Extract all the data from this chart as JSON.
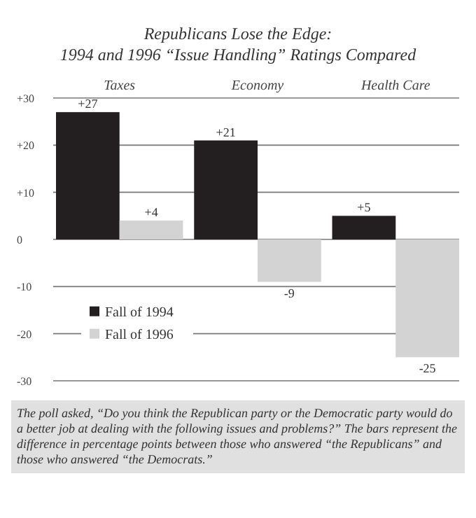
{
  "chart_data": {
    "type": "bar",
    "title": "Republicans Lose the Edge:",
    "subtitle": "1994 and 1996 “Issue Handling” Ratings Compared",
    "categories": [
      "Taxes",
      "Economy",
      "Health Care"
    ],
    "series": [
      {
        "name": "Fall of 1994",
        "color": "#231f20",
        "values": [
          27,
          21,
          5
        ],
        "value_labels": [
          "+27",
          "+21",
          "+5"
        ]
      },
      {
        "name": "Fall of 1996",
        "color": "#d3d3d3",
        "values": [
          4,
          -9,
          -25
        ],
        "value_labels": [
          "+4",
          "-9",
          "-25"
        ]
      }
    ],
    "ylim": [
      -30,
      30
    ],
    "yticks": [
      {
        "value": 30,
        "label": "+30"
      },
      {
        "value": 20,
        "label": "+20"
      },
      {
        "value": 10,
        "label": "+10"
      },
      0,
      -10,
      -20,
      -30
    ],
    "grid": "y",
    "legend": "bottom left",
    "annotations": [
      "The poll asked, “Do you think the Republican party or the Democratic party would do a better job at dealing with the following issues and problems?” The bars represent the difference in percentage points between those who answered “the Republicans” and those who answered “the Democrats.”"
    ]
  }
}
